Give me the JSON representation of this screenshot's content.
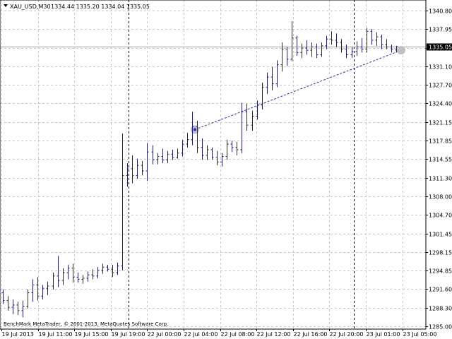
{
  "header": {
    "symbol": "XAU_USD,M30",
    "ohlc": "1334.44 1335.20 1334.04 1335.05"
  },
  "copyright": "BenchMark MetaTrader, © 2001-2013, MetaQuotes Software Corp.",
  "colors": {
    "bars": "#1c1c8c",
    "grid": "#c8c8c8",
    "line": "#2a2ad0",
    "price_tag": "#000000"
  },
  "chart_data": {
    "type": "ohlc",
    "price_label": "1335.05",
    "y_ticks": [
      "1340.80",
      "1337.95",
      "1334.25",
      "1331.10",
      "1327.70",
      "1324.40",
      "1321.15",
      "1317.85",
      "1314.55",
      "1311.30",
      "1308.00",
      "1304.70",
      "1301.45",
      "1298.15",
      "1294.85",
      "1291.60",
      "1288.30",
      "1285.00"
    ],
    "x_ticks": [
      "19 Jul 2013",
      "19 Jul 11:00",
      "19 Jul 15:00",
      "19 Jul 19:00",
      "22 Jul 00:00",
      "22 Jul 04:00",
      "22 Jul 08:00",
      "22 Jul 12:00",
      "22 Jul 16:00",
      "22 Jul 20:00",
      "23 Jul 01:00",
      "23 Jul 05:00"
    ],
    "ylim": [
      1285.0,
      1341.5
    ],
    "separators": [
      "22 Jul 00:00",
      "23 Jul 01:00"
    ],
    "trendline": {
      "from": {
        "time": "22 Jul 04:00",
        "price": 1320.2
      },
      "to": {
        "time": "23 Jul 05:00",
        "price": 1334.4
      }
    },
    "bars": [
      {
        "o": 1291.0,
        "h": 1291.6,
        "l": 1289.0,
        "c": 1289.6
      },
      {
        "o": 1289.6,
        "h": 1290.4,
        "l": 1287.8,
        "c": 1288.4
      },
      {
        "o": 1288.4,
        "h": 1289.8,
        "l": 1287.2,
        "c": 1288.8
      },
      {
        "o": 1288.8,
        "h": 1289.4,
        "l": 1287.0,
        "c": 1287.8
      },
      {
        "o": 1287.8,
        "h": 1289.6,
        "l": 1286.6,
        "c": 1288.6
      },
      {
        "o": 1288.6,
        "h": 1291.6,
        "l": 1288.2,
        "c": 1291.0
      },
      {
        "o": 1291.0,
        "h": 1293.4,
        "l": 1289.4,
        "c": 1292.4
      },
      {
        "o": 1292.4,
        "h": 1293.8,
        "l": 1289.6,
        "c": 1290.4
      },
      {
        "o": 1290.4,
        "h": 1292.4,
        "l": 1289.8,
        "c": 1291.8
      },
      {
        "o": 1291.8,
        "h": 1293.0,
        "l": 1290.6,
        "c": 1292.2
      },
      {
        "o": 1292.2,
        "h": 1294.6,
        "l": 1291.6,
        "c": 1294.0
      },
      {
        "o": 1294.0,
        "h": 1297.6,
        "l": 1292.0,
        "c": 1293.2
      },
      {
        "o": 1293.2,
        "h": 1295.4,
        "l": 1292.4,
        "c": 1294.6
      },
      {
        "o": 1294.6,
        "h": 1296.0,
        "l": 1293.4,
        "c": 1295.4
      },
      {
        "o": 1295.4,
        "h": 1296.2,
        "l": 1292.8,
        "c": 1293.8
      },
      {
        "o": 1293.8,
        "h": 1294.6,
        "l": 1292.8,
        "c": 1293.4
      },
      {
        "o": 1293.4,
        "h": 1294.2,
        "l": 1292.6,
        "c": 1293.6
      },
      {
        "o": 1293.6,
        "h": 1294.8,
        "l": 1293.0,
        "c": 1294.2
      },
      {
        "o": 1294.2,
        "h": 1295.2,
        "l": 1293.4,
        "c": 1294.0
      },
      {
        "o": 1294.0,
        "h": 1295.6,
        "l": 1293.6,
        "c": 1295.0
      },
      {
        "o": 1295.0,
        "h": 1296.2,
        "l": 1294.4,
        "c": 1295.6
      },
      {
        "o": 1295.6,
        "h": 1296.0,
        "l": 1294.8,
        "c": 1295.2
      },
      {
        "o": 1295.2,
        "h": 1296.0,
        "l": 1293.8,
        "c": 1294.6
      },
      {
        "o": 1294.6,
        "h": 1296.4,
        "l": 1294.2,
        "c": 1295.8
      },
      {
        "o": 1295.8,
        "h": 1319.5,
        "l": 1295.0,
        "c": 1312.0
      },
      {
        "o": 1312.0,
        "h": 1314.2,
        "l": 1310.0,
        "c": 1313.2
      },
      {
        "o": 1313.2,
        "h": 1315.6,
        "l": 1310.6,
        "c": 1312.0
      },
      {
        "o": 1312.0,
        "h": 1315.0,
        "l": 1311.4,
        "c": 1313.8
      },
      {
        "o": 1313.8,
        "h": 1314.6,
        "l": 1312.0,
        "c": 1312.8
      },
      {
        "o": 1312.8,
        "h": 1317.8,
        "l": 1311.0,
        "c": 1316.2
      },
      {
        "o": 1316.2,
        "h": 1317.4,
        "l": 1314.0,
        "c": 1314.8
      },
      {
        "o": 1314.8,
        "h": 1316.0,
        "l": 1314.0,
        "c": 1315.4
      },
      {
        "o": 1315.4,
        "h": 1316.8,
        "l": 1314.2,
        "c": 1314.8
      },
      {
        "o": 1314.8,
        "h": 1316.4,
        "l": 1314.2,
        "c": 1315.8
      },
      {
        "o": 1315.8,
        "h": 1316.6,
        "l": 1314.8,
        "c": 1315.2
      },
      {
        "o": 1315.2,
        "h": 1316.8,
        "l": 1315.0,
        "c": 1316.0
      },
      {
        "o": 1316.0,
        "h": 1318.4,
        "l": 1315.4,
        "c": 1317.6
      },
      {
        "o": 1317.6,
        "h": 1319.6,
        "l": 1317.0,
        "c": 1318.4
      },
      {
        "o": 1318.4,
        "h": 1323.4,
        "l": 1317.4,
        "c": 1320.8
      },
      {
        "o": 1320.8,
        "h": 1321.8,
        "l": 1316.0,
        "c": 1317.0
      },
      {
        "o": 1317.0,
        "h": 1318.6,
        "l": 1314.8,
        "c": 1315.6
      },
      {
        "o": 1315.6,
        "h": 1317.4,
        "l": 1314.8,
        "c": 1316.6
      },
      {
        "o": 1316.6,
        "h": 1317.0,
        "l": 1314.8,
        "c": 1315.2
      },
      {
        "o": 1315.2,
        "h": 1316.4,
        "l": 1313.8,
        "c": 1314.4
      },
      {
        "o": 1314.4,
        "h": 1316.0,
        "l": 1313.6,
        "c": 1315.4
      },
      {
        "o": 1315.4,
        "h": 1318.4,
        "l": 1314.8,
        "c": 1317.6
      },
      {
        "o": 1317.6,
        "h": 1318.2,
        "l": 1316.2,
        "c": 1317.0
      },
      {
        "o": 1317.0,
        "h": 1318.0,
        "l": 1315.6,
        "c": 1316.6
      },
      {
        "o": 1316.6,
        "h": 1325.0,
        "l": 1316.0,
        "c": 1323.4
      },
      {
        "o": 1323.4,
        "h": 1324.8,
        "l": 1320.0,
        "c": 1321.0
      },
      {
        "o": 1321.0,
        "h": 1323.6,
        "l": 1320.0,
        "c": 1322.6
      },
      {
        "o": 1322.6,
        "h": 1325.4,
        "l": 1322.0,
        "c": 1324.6
      },
      {
        "o": 1324.6,
        "h": 1328.6,
        "l": 1323.8,
        "c": 1327.8
      },
      {
        "o": 1327.8,
        "h": 1330.4,
        "l": 1326.6,
        "c": 1329.6
      },
      {
        "o": 1329.6,
        "h": 1331.4,
        "l": 1327.2,
        "c": 1328.4
      },
      {
        "o": 1328.4,
        "h": 1332.6,
        "l": 1327.8,
        "c": 1331.8
      },
      {
        "o": 1331.8,
        "h": 1335.8,
        "l": 1330.6,
        "c": 1334.6
      },
      {
        "o": 1334.6,
        "h": 1335.0,
        "l": 1331.6,
        "c": 1332.8
      },
      {
        "o": 1332.8,
        "h": 1339.6,
        "l": 1332.4,
        "c": 1336.6
      },
      {
        "o": 1336.6,
        "h": 1337.0,
        "l": 1333.4,
        "c": 1334.0
      },
      {
        "o": 1334.0,
        "h": 1335.6,
        "l": 1333.0,
        "c": 1334.8
      },
      {
        "o": 1334.8,
        "h": 1336.2,
        "l": 1333.6,
        "c": 1334.4
      },
      {
        "o": 1334.4,
        "h": 1335.8,
        "l": 1333.2,
        "c": 1335.0
      },
      {
        "o": 1335.0,
        "h": 1335.6,
        "l": 1333.0,
        "c": 1333.6
      },
      {
        "o": 1333.6,
        "h": 1335.8,
        "l": 1333.2,
        "c": 1335.2
      },
      {
        "o": 1335.2,
        "h": 1337.0,
        "l": 1334.6,
        "c": 1336.4
      },
      {
        "o": 1336.4,
        "h": 1337.8,
        "l": 1335.4,
        "c": 1336.2
      },
      {
        "o": 1336.2,
        "h": 1337.4,
        "l": 1335.0,
        "c": 1335.8
      },
      {
        "o": 1335.8,
        "h": 1336.4,
        "l": 1334.0,
        "c": 1334.6
      },
      {
        "o": 1334.6,
        "h": 1335.4,
        "l": 1333.0,
        "c": 1333.6
      },
      {
        "o": 1333.6,
        "h": 1335.0,
        "l": 1333.0,
        "c": 1334.2
      },
      {
        "o": 1334.2,
        "h": 1336.0,
        "l": 1333.4,
        "c": 1335.0
      },
      {
        "o": 1335.0,
        "h": 1336.6,
        "l": 1334.0,
        "c": 1334.6
      },
      {
        "o": 1334.6,
        "h": 1338.4,
        "l": 1334.0,
        "c": 1337.8
      },
      {
        "o": 1337.8,
        "h": 1338.2,
        "l": 1335.4,
        "c": 1336.2
      },
      {
        "o": 1336.2,
        "h": 1337.6,
        "l": 1335.2,
        "c": 1336.8
      },
      {
        "o": 1336.8,
        "h": 1337.2,
        "l": 1334.6,
        "c": 1335.4
      },
      {
        "o": 1335.4,
        "h": 1336.4,
        "l": 1334.6,
        "c": 1335.0
      },
      {
        "o": 1335.0,
        "h": 1335.4,
        "l": 1334.0,
        "c": 1334.6
      },
      {
        "o": 1334.44,
        "h": 1335.2,
        "l": 1334.04,
        "c": 1335.05
      }
    ]
  }
}
